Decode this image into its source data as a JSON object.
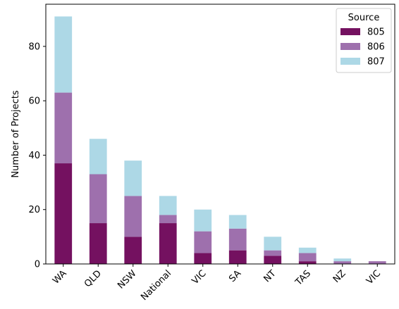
{
  "chart_data": {
    "type": "bar",
    "stacked": true,
    "title": "",
    "xlabel": "",
    "ylabel": "Number of Projects",
    "ylim": [
      0,
      95.5
    ],
    "yticks": [
      0,
      20,
      40,
      60,
      80
    ],
    "categories": [
      "WA",
      "QLD",
      "NSW",
      "National",
      "VIC",
      "SA",
      "NT",
      "TAS",
      "NZ",
      "VIC"
    ],
    "series": [
      {
        "name": "805",
        "color": "#741160",
        "values": [
          37,
          15,
          10,
          15,
          4,
          5,
          3,
          1,
          0,
          0
        ]
      },
      {
        "name": "806",
        "color": "#9e70ad",
        "values": [
          26,
          18,
          15,
          3,
          8,
          8,
          2,
          3,
          1,
          1
        ]
      },
      {
        "name": "807",
        "color": "#add8e6",
        "values": [
          28,
          13,
          13,
          7,
          8,
          5,
          5,
          2,
          1,
          0
        ]
      }
    ],
    "legend": {
      "title": "Source",
      "placement": "top-right"
    },
    "grid": false
  }
}
